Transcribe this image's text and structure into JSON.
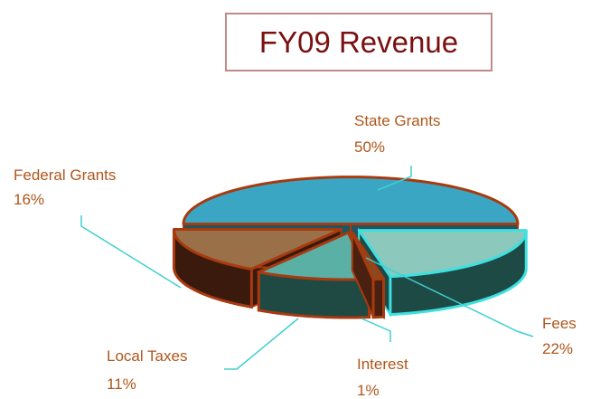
{
  "chart_data": {
    "type": "pie",
    "title": "FY09 Revenue",
    "categories": [
      "State Grants",
      "Fees",
      "Interest",
      "Local Taxes",
      "Federal Grants"
    ],
    "values": [
      50,
      22,
      1,
      11,
      16
    ],
    "value_labels": [
      "50%",
      "22%",
      "1%",
      "11%",
      "16%"
    ]
  }
}
